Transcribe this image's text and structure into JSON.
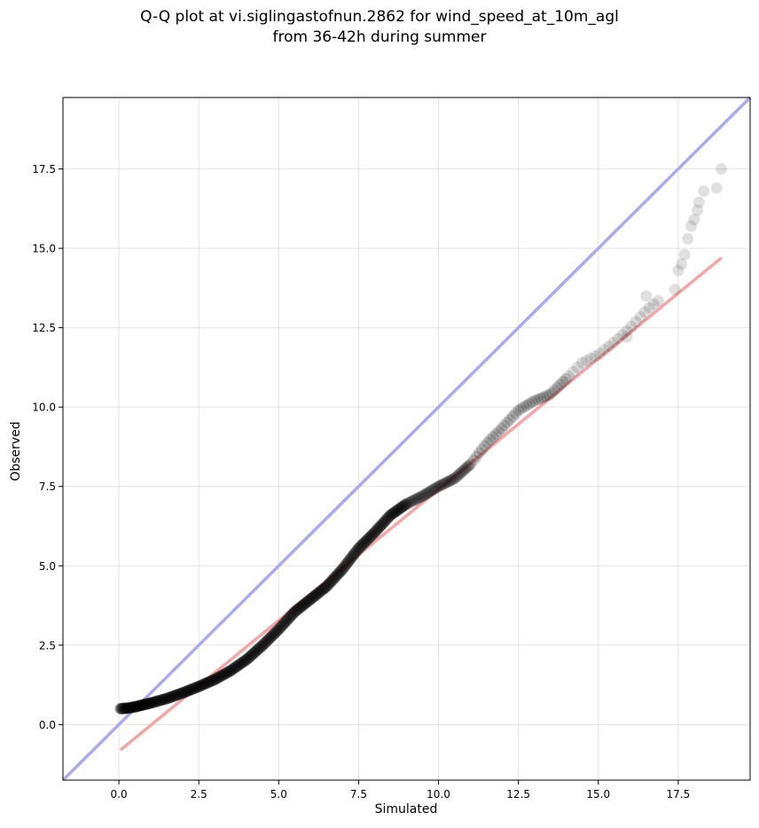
{
  "chart_data": {
    "type": "scatter",
    "title_line1": "Q-Q plot at vi.siglingastofnun.2862 for wind_speed_at_10m_agl",
    "title_line2": "from 36-42h during summer",
    "xlabel": "Simulated",
    "ylabel": "Observed",
    "xlim": [
      -1.75,
      19.75
    ],
    "ylim": [
      -1.75,
      19.75
    ],
    "xticks": [
      0.0,
      2.5,
      5.0,
      7.5,
      10.0,
      12.5,
      15.0,
      17.5
    ],
    "yticks": [
      0.0,
      2.5,
      5.0,
      7.5,
      10.0,
      12.5,
      15.0,
      17.5
    ],
    "xtick_labels": [
      "0.0",
      "2.5",
      "5.0",
      "7.5",
      "10.0",
      "12.5",
      "15.0",
      "17.5"
    ],
    "ytick_labels": [
      "0.0",
      "2.5",
      "5.0",
      "7.5",
      "10.0",
      "12.5",
      "15.0",
      "17.5"
    ],
    "grid": true,
    "identity_line": {
      "color": "#aaaaf2",
      "x": [
        -1.75,
        19.75
      ],
      "y": [
        -1.75,
        19.75
      ]
    },
    "fit_line": {
      "color": "#f4a6a6",
      "x": [
        0.05,
        18.85
      ],
      "y": [
        -0.8,
        14.7
      ]
    },
    "quantile_curve": {
      "x": [
        0.05,
        0.3,
        0.6,
        1.0,
        1.5,
        2.0,
        2.5,
        3.0,
        3.5,
        4.0,
        4.5,
        5.0,
        5.5,
        6.0,
        6.5,
        7.0,
        7.5,
        8.0,
        8.5,
        9.0,
        9.5,
        10.0,
        10.5,
        11.0,
        11.5,
        12.0,
        12.5,
        13.0,
        13.5,
        14.0,
        14.5,
        15.0,
        15.5,
        16.0,
        16.5,
        17.0
      ],
      "y": [
        0.5,
        0.52,
        0.58,
        0.68,
        0.82,
        1.0,
        1.2,
        1.42,
        1.7,
        2.05,
        2.5,
        3.0,
        3.55,
        3.95,
        4.35,
        4.9,
        5.55,
        6.05,
        6.6,
        6.95,
        7.2,
        7.5,
        7.75,
        8.2,
        8.85,
        9.35,
        9.9,
        10.2,
        10.4,
        10.9,
        11.4,
        11.65,
        12.05,
        12.5,
        13.05,
        13.45
      ]
    },
    "tail_points": [
      {
        "x": 17.4,
        "y": 13.7
      },
      {
        "x": 17.5,
        "y": 14.3
      },
      {
        "x": 17.6,
        "y": 14.5
      },
      {
        "x": 17.7,
        "y": 14.8
      },
      {
        "x": 17.8,
        "y": 15.3
      },
      {
        "x": 17.9,
        "y": 15.7
      },
      {
        "x": 18.0,
        "y": 15.9
      },
      {
        "x": 18.1,
        "y": 16.2
      },
      {
        "x": 18.15,
        "y": 16.45
      },
      {
        "x": 18.3,
        "y": 16.8
      },
      {
        "x": 18.7,
        "y": 16.9
      },
      {
        "x": 18.85,
        "y": 17.5
      },
      {
        "x": 16.5,
        "y": 13.5
      },
      {
        "x": 15.9,
        "y": 12.2
      }
    ]
  }
}
